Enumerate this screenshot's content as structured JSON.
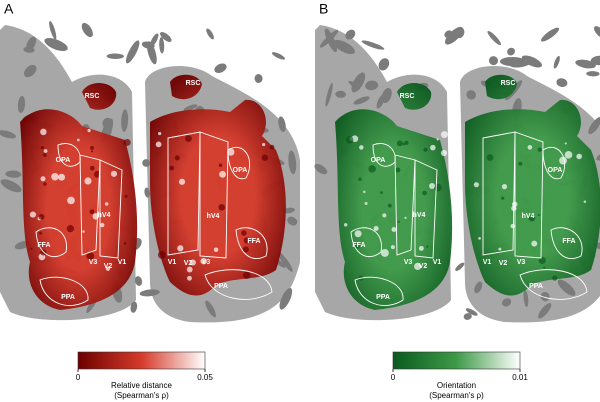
{
  "panels": [
    {
      "label": "A",
      "left_labels": [
        "RSC",
        "OPA",
        "hV4",
        "FFA",
        "V3",
        "V2",
        "V1",
        "PPA"
      ],
      "right_labels": [
        "RSC",
        "OPA",
        "hV4",
        "FFA",
        "V1",
        "V2",
        "V3",
        "PPA"
      ],
      "colormap": [
        "#6e0000",
        "#d63a2a",
        "#ffffff"
      ],
      "colorbar": {
        "ticks": [
          0,
          0.05
        ],
        "title": "Relative distance",
        "subtitle": "(Spearman's ρ)"
      }
    },
    {
      "label": "B",
      "left_labels": [
        "RSC",
        "OPA",
        "hV4",
        "FFA",
        "V3",
        "V2",
        "V1",
        "PPA"
      ],
      "right_labels": [
        "RSC",
        "OPA",
        "hV4",
        "FFA",
        "V1",
        "V2",
        "V3",
        "PPA"
      ],
      "colormap": [
        "#0a5a1e",
        "#3e9a48",
        "#ffffff"
      ],
      "colorbar": {
        "ticks": [
          0,
          0.01
        ],
        "title": "Orientation",
        "subtitle": "(Spearman's ρ)"
      }
    }
  ]
}
